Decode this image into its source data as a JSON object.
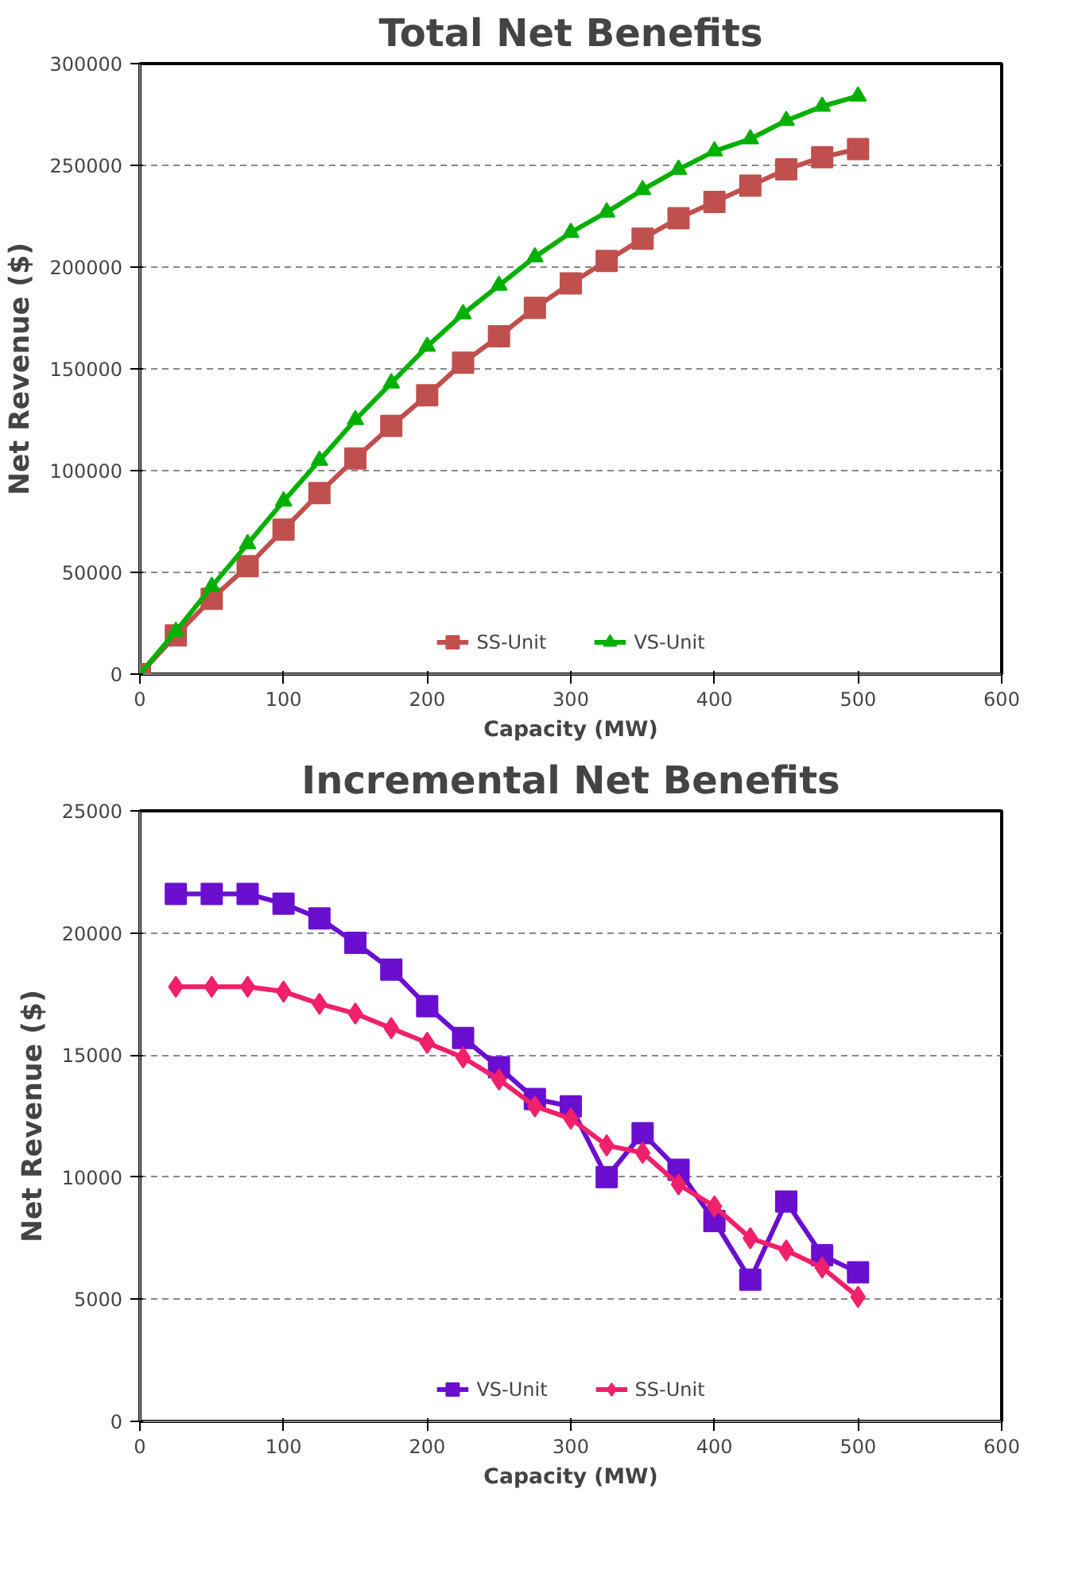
{
  "chart_data": [
    {
      "type": "line",
      "title": "Total Net Benefits",
      "xlabel": "Capacity (MW)",
      "ylabel": "Net Revenue ($)",
      "x": [
        0,
        25,
        50,
        75,
        100,
        125,
        150,
        175,
        200,
        225,
        250,
        275,
        300,
        325,
        350,
        375,
        400,
        425,
        450,
        475,
        500
      ],
      "series": [
        {
          "name": "SS-Unit",
          "color": "#c0504d",
          "marker": "square",
          "values": [
            0,
            19000,
            37000,
            53000,
            71000,
            89000,
            106000,
            122000,
            137000,
            153000,
            166000,
            180000,
            192000,
            203000,
            214000,
            224000,
            232000,
            240000,
            248000,
            254000,
            258000
          ]
        },
        {
          "name": "VS-Unit",
          "color": "#00b000",
          "marker": "triangle",
          "values": [
            0,
            21000,
            43000,
            64000,
            85000,
            105000,
            125000,
            143000,
            161000,
            177000,
            191000,
            205000,
            217000,
            227000,
            238000,
            248000,
            257000,
            263000,
            272000,
            279000,
            284000
          ]
        }
      ],
      "xlim": [
        0,
        600
      ],
      "xticks": [
        0,
        100,
        200,
        300,
        400,
        500,
        600
      ],
      "ylim": [
        0,
        300000
      ],
      "yticks": [
        0,
        50000,
        100000,
        150000,
        200000,
        250000,
        300000
      ],
      "grid": "y",
      "legend": "bottom",
      "line_style": "solid"
    },
    {
      "type": "line",
      "title": "Incremental Net Benefits",
      "xlabel": "Capacity (MW)",
      "ylabel": "Net Revenue ($)",
      "x": [
        25,
        50,
        75,
        100,
        125,
        150,
        175,
        200,
        225,
        250,
        275,
        300,
        325,
        350,
        375,
        400,
        425,
        450,
        475,
        500
      ],
      "series": [
        {
          "name": "VS-Unit",
          "color": "#6a0fd0",
          "marker": "square",
          "values": [
            21600,
            21600,
            21600,
            21200,
            20600,
            19600,
            18500,
            17000,
            15700,
            14500,
            13200,
            12900,
            10000,
            11800,
            10300,
            8200,
            5800,
            9000,
            6800,
            6100
          ]
        },
        {
          "name": "SS-Unit",
          "color": "#f0206a",
          "marker": "diamond",
          "values": [
            17800,
            17800,
            17800,
            17600,
            17100,
            16700,
            16100,
            15500,
            14900,
            14000,
            12900,
            12400,
            11300,
            11000,
            9700,
            8800,
            7500,
            7000,
            6300,
            5100
          ]
        }
      ],
      "xlim": [
        0,
        600
      ],
      "xticks": [
        0,
        100,
        200,
        300,
        400,
        500,
        600
      ],
      "ylim": [
        0,
        25000
      ],
      "yticks": [
        0,
        5000,
        10000,
        15000,
        20000,
        25000
      ],
      "grid": "y",
      "legend": "bottom",
      "line_style": "solid"
    }
  ]
}
